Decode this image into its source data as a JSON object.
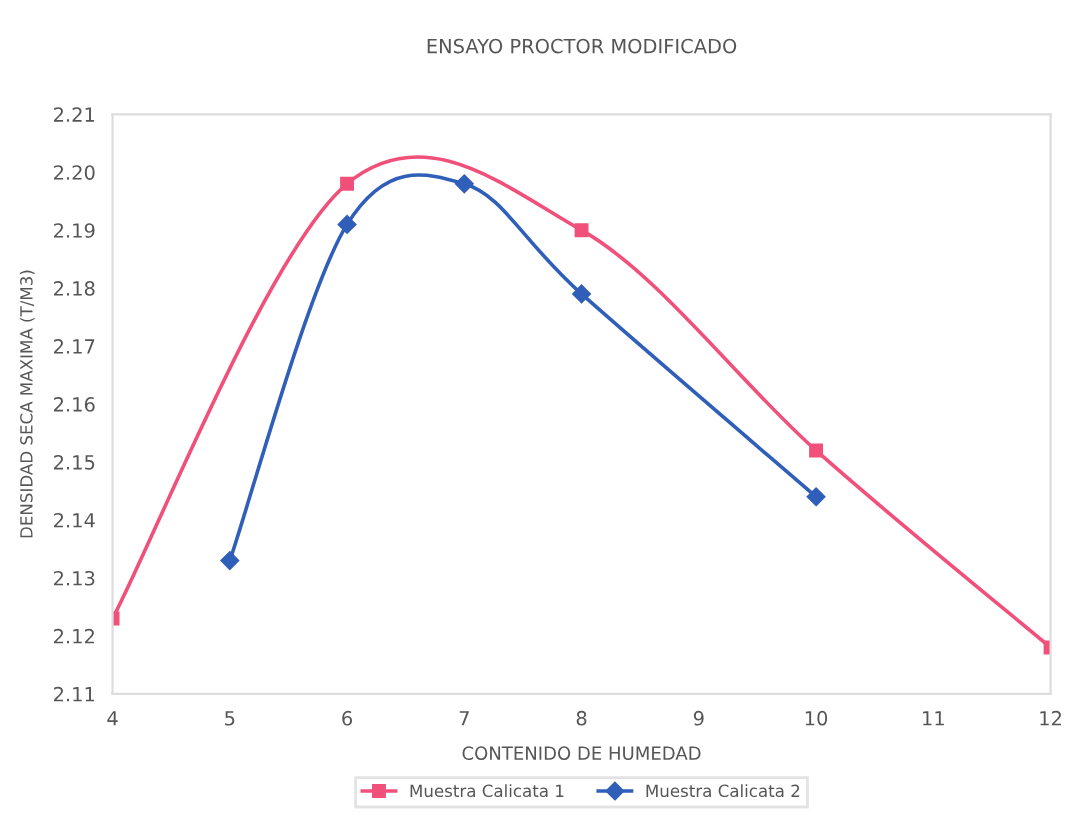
{
  "chart_data": {
    "type": "line",
    "title": "ENSAYO PROCTOR MODIFICADO",
    "xlabel": "CONTENIDO DE HUMEDAD",
    "ylabel": "DENSIDAD SECA MAXIMA (T/M3)",
    "xlim": [
      4,
      12
    ],
    "xticks": [
      4,
      5,
      6,
      7,
      8,
      9,
      10,
      11,
      12
    ],
    "ylim": [
      2.11,
      2.21
    ],
    "yticks": [
      {
        "value": 2.11,
        "label": "2.11"
      },
      {
        "value": 2.12,
        "label": "2.12"
      },
      {
        "value": 2.13,
        "label": "2.13"
      },
      {
        "value": 2.14,
        "label": "2.14"
      },
      {
        "value": 2.15,
        "label": "2.15"
      },
      {
        "value": 2.16,
        "label": "2.16"
      },
      {
        "value": 2.17,
        "label": "2.17"
      },
      {
        "value": 2.18,
        "label": "2.18"
      },
      {
        "value": 2.19,
        "label": "2.19"
      },
      {
        "value": 2.2,
        "label": "2.20"
      },
      {
        "value": 2.21,
        "label": "2.21"
      }
    ],
    "grid": false,
    "legend": "bottom",
    "series": [
      {
        "name": "Muestra Calicata 1",
        "color": "#f0507a",
        "marker": "square",
        "x": [
          4,
          6,
          8,
          10,
          12
        ],
        "values": [
          2.123,
          2.198,
          2.19,
          2.152,
          2.118
        ]
      },
      {
        "name": "Muestra Calicata 2",
        "color": "#2f5fb8",
        "marker": "diamond",
        "x": [
          5,
          6,
          7,
          8,
          10
        ],
        "values": [
          2.133,
          2.191,
          2.198,
          2.179,
          2.144
        ]
      }
    ]
  }
}
